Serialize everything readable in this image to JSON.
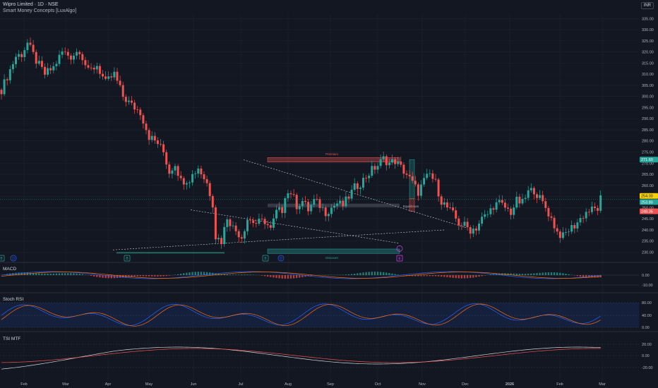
{
  "header": {
    "symbol_line": "Wipro Limited · 1D · NSE",
    "indicator_line": "Smart Money Concepts [LuxAlgo]",
    "currency": "INR"
  },
  "colors": {
    "background": "#131722",
    "bull": "#26a69a",
    "bear": "#ef5350",
    "grid": "#1e222d",
    "axis_text": "#b2b5be"
  },
  "chart_data": {
    "type": "candlestick",
    "price_axis": {
      "ticks": [
        "335.00",
        "330.00",
        "325.00",
        "320.00",
        "315.00",
        "310.00",
        "305.00",
        "300.00",
        "295.00",
        "290.00",
        "285.00",
        "280.00",
        "275.00",
        "270.00",
        "265.00",
        "260.00",
        "255.00",
        "250.00",
        "245.00",
        "240.00",
        "235.00",
        "230.00"
      ],
      "range": [
        226,
        337
      ],
      "labels": [
        {
          "value": 271.6,
          "text": "271.60",
          "color": "#26a69a",
          "text_color": "#ffffff"
        },
        {
          "value": 254.0,
          "text": "254.00",
          "color": "#f7d200",
          "text_color": "#131722"
        },
        {
          "value": 253.8,
          "text": "253.80",
          "color": "#26a69a",
          "text_color": "#ffffff"
        },
        {
          "value": 248.35,
          "text": "248.35",
          "color": "#ef5350",
          "text_color": "#ffffff"
        }
      ]
    },
    "time_axis": {
      "ticks": [
        "Feb",
        "Mar",
        "Apr",
        "May",
        "Jun",
        "Jul",
        "Aug",
        "Sep",
        "Oct",
        "Nov",
        "Dec",
        "2026",
        "Feb",
        "Mar"
      ]
    },
    "price_path": [
      [
        0,
        303
      ],
      [
        3,
        312
      ],
      [
        5,
        318
      ],
      [
        7,
        319
      ],
      [
        9,
        324
      ],
      [
        12,
        316
      ],
      [
        15,
        310
      ],
      [
        18,
        313
      ],
      [
        21,
        320
      ],
      [
        24,
        318
      ],
      [
        27,
        321
      ],
      [
        30,
        311
      ],
      [
        33,
        314
      ],
      [
        36,
        306
      ],
      [
        39,
        310
      ],
      [
        42,
        300
      ],
      [
        45,
        296
      ],
      [
        48,
        293
      ],
      [
        51,
        282
      ],
      [
        54,
        279
      ],
      [
        56,
        275
      ],
      [
        58,
        266
      ],
      [
        60,
        270
      ],
      [
        62,
        262
      ],
      [
        65,
        263
      ],
      [
        68,
        268
      ],
      [
        71,
        261
      ],
      [
        73,
        252
      ],
      [
        74,
        237
      ],
      [
        76,
        235
      ],
      [
        78,
        246
      ],
      [
        80,
        241
      ],
      [
        83,
        237
      ],
      [
        85,
        245
      ],
      [
        88,
        243
      ],
      [
        91,
        244
      ],
      [
        93,
        240
      ],
      [
        95,
        248
      ],
      [
        97,
        249
      ],
      [
        98,
        256
      ],
      [
        100,
        257
      ],
      [
        102,
        251
      ],
      [
        104,
        253
      ],
      [
        106,
        249
      ],
      [
        108,
        253
      ],
      [
        110,
        251
      ],
      [
        112,
        248
      ],
      [
        114,
        250
      ],
      [
        116,
        252
      ],
      [
        118,
        251
      ],
      [
        120,
        255
      ],
      [
        122,
        259
      ],
      [
        124,
        261
      ],
      [
        126,
        264
      ],
      [
        128,
        267
      ],
      [
        130,
        269
      ],
      [
        132,
        272
      ],
      [
        134,
        270
      ],
      [
        136,
        271
      ],
      [
        138,
        268
      ],
      [
        140,
        265
      ],
      [
        142,
        261
      ],
      [
        144,
        257
      ],
      [
        146,
        262
      ],
      [
        148,
        265
      ],
      [
        150,
        261
      ],
      [
        152,
        253
      ],
      [
        154,
        250
      ],
      [
        156,
        247
      ],
      [
        158,
        243
      ],
      [
        160,
        242
      ],
      [
        162,
        240
      ],
      [
        164,
        241
      ],
      [
        166,
        245
      ],
      [
        168,
        247
      ],
      [
        170,
        251
      ],
      [
        172,
        252
      ],
      [
        174,
        250
      ],
      [
        176,
        248
      ],
      [
        178,
        253
      ],
      [
        180,
        252
      ],
      [
        182,
        257
      ],
      [
        184,
        258
      ],
      [
        186,
        254
      ],
      [
        188,
        250
      ],
      [
        190,
        245
      ],
      [
        192,
        239
      ],
      [
        194,
        237
      ],
      [
        196,
        240
      ],
      [
        198,
        242
      ],
      [
        200,
        245
      ],
      [
        202,
        248
      ],
      [
        204,
        249
      ],
      [
        206,
        249.5
      ],
      [
        207,
        254
      ]
    ],
    "annotations": {
      "premium_label": "Premium",
      "equilibrium_label": "Equilibrium",
      "discount_label": "Discount",
      "event_markers": [
        {
          "text": "B",
          "color": "#26a69a"
        },
        {
          "text": "D",
          "color": "#2962ff"
        },
        {
          "text": "B",
          "color": "#26a69a"
        },
        {
          "text": "B",
          "color": "#26a69a"
        },
        {
          "text": "D",
          "color": "#2962ff"
        },
        {
          "text": "E",
          "color": "#e040fb"
        }
      ]
    }
  },
  "panes": [
    {
      "title": "MACD",
      "ticks": [
        "0.00",
        "-10.00"
      ]
    },
    {
      "title": "Stoch RSI",
      "ticks": [
        "80.00",
        "40.00",
        "0.00"
      ]
    },
    {
      "title": "TSI MTF",
      "ticks": [
        "20.00",
        "0.00",
        "-20.00"
      ]
    }
  ]
}
